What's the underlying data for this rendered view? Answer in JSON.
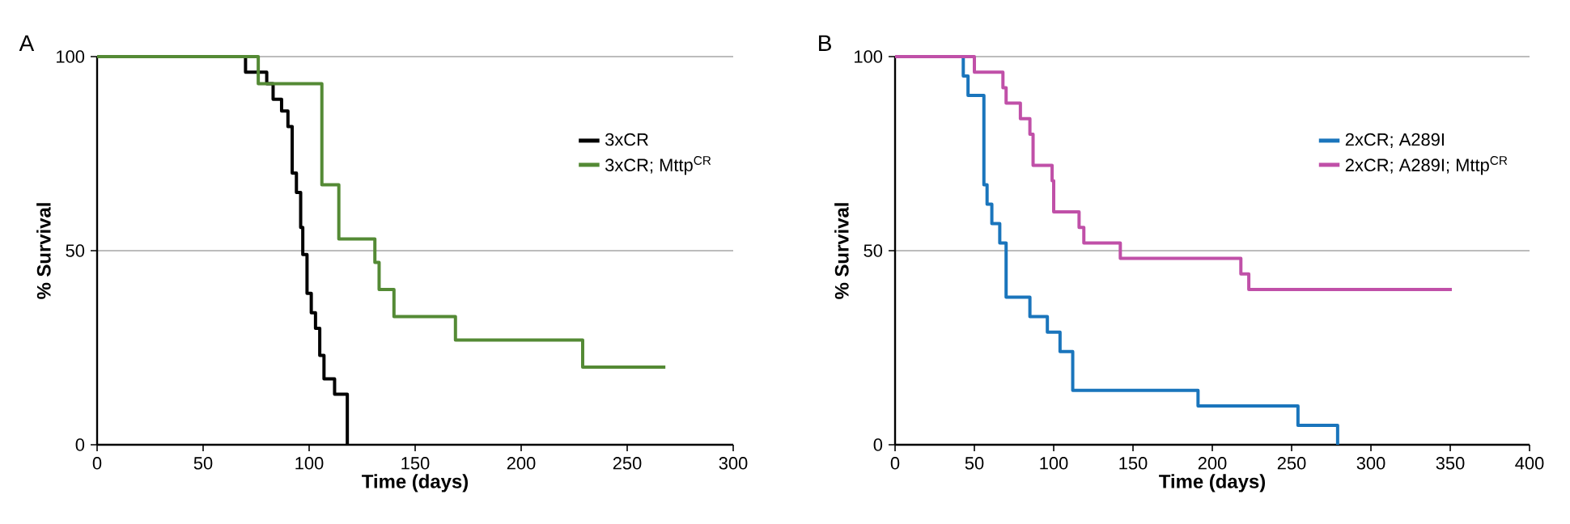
{
  "chart_data": [
    {
      "type": "step",
      "xlabel": "Time (days)",
      "ylabel": "% Survival",
      "annotations": [
        "A"
      ],
      "xlim": [
        0,
        300
      ],
      "xticks": [
        0,
        50,
        100,
        150,
        200,
        250,
        300
      ],
      "ylim": [
        0,
        100
      ],
      "yticks": [
        0,
        50,
        100
      ],
      "grid": "y",
      "legend": "top right",
      "series": [
        {
          "name": "3xCR",
          "color": "#000000",
          "x": [
            0,
            70,
            80,
            83,
            87,
            90,
            92,
            94,
            96,
            97,
            99,
            101,
            103,
            105,
            107,
            112,
            118
          ],
          "values": [
            100,
            96,
            93,
            89,
            86,
            82,
            70,
            65,
            56,
            49,
            39,
            34,
            30,
            23,
            17,
            13,
            0
          ]
        },
        {
          "name": "3xCR; Mttp$^{CR}$",
          "color": "#548a35",
          "x": [
            0,
            76,
            106,
            114,
            131,
            133,
            140,
            169,
            229,
            268
          ],
          "values": [
            100,
            93,
            67,
            53,
            47,
            40,
            33,
            27,
            20,
            20
          ]
        }
      ]
    },
    {
      "type": "step",
      "xlabel": "Time (days)",
      "ylabel": "% Survival",
      "annotations": [
        "B"
      ],
      "xlim": [
        0,
        400
      ],
      "xticks": [
        0,
        50,
        100,
        150,
        200,
        250,
        300,
        350,
        400
      ],
      "ylim": [
        0,
        100
      ],
      "yticks": [
        0,
        50,
        100
      ],
      "grid": "y",
      "legend": "top right",
      "series": [
        {
          "name": "2xCR; A289I",
          "color": "#1a75bc",
          "x": [
            0,
            43,
            46,
            56,
            58,
            61,
            66,
            70,
            85,
            96,
            104,
            112,
            191,
            254,
            279
          ],
          "values": [
            100,
            95,
            90,
            67,
            62,
            57,
            52,
            38,
            33,
            29,
            24,
            14,
            10,
            5,
            0
          ]
        },
        {
          "name": "2xCR; A289I; Mttp$^{CR}$",
          "color": "#c050a8",
          "x": [
            0,
            50,
            68,
            70,
            79,
            85,
            87,
            99,
            100,
            116,
            119,
            142,
            218,
            223,
            351
          ],
          "values": [
            100,
            96,
            92,
            88,
            84,
            80,
            72,
            68,
            60,
            56,
            52,
            48,
            44,
            40,
            40
          ]
        }
      ]
    }
  ]
}
